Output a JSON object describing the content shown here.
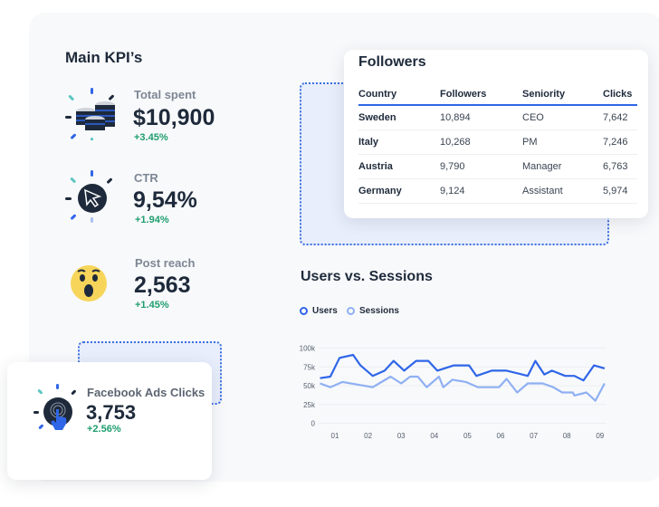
{
  "kpi_section": {
    "title": "Main KPI’s",
    "items": [
      {
        "label": "Total spent",
        "value": "$10,900",
        "change": "+3.45%",
        "icon": "coins-icon"
      },
      {
        "label": "CTR",
        "value": "9,54%",
        "change": "+1.94%",
        "icon": "cursor-click-icon"
      },
      {
        "label": "Post reach",
        "value": "2,563",
        "change": "+1.45%",
        "icon": "wow-emoji-icon"
      },
      {
        "label": "Facebook Ads Clicks",
        "value": "3,753",
        "change": "+2.56%",
        "icon": "touch-hand-icon"
      }
    ]
  },
  "followers": {
    "title": "Followers",
    "columns": [
      "Country",
      "Followers",
      "Seniority",
      "Clicks"
    ],
    "rows": [
      [
        "Sweden",
        "10,894",
        "CEO",
        "7,642"
      ],
      [
        "Italy",
        "10,268",
        "PM",
        "7,246"
      ],
      [
        "Austria",
        "9,790",
        "Manager",
        "6,763"
      ],
      [
        "Germany",
        "9,124",
        "Assistant",
        "5,974"
      ]
    ]
  },
  "colors": {
    "accent": "#2f66e8",
    "sessions": "#8fb0f2",
    "positive": "#1f9e6e"
  },
  "chart_data": {
    "type": "line",
    "title": "Users vs. Sessions",
    "xlabel": "",
    "ylabel": "",
    "legend_position": "top-left",
    "grid": true,
    "ylim": [
      0,
      100000
    ],
    "yticks": [
      "0",
      "25k",
      "50k",
      "75k",
      "100k"
    ],
    "xticks": [
      "01",
      "02",
      "03",
      "04",
      "05",
      "06",
      "07",
      "08",
      "09"
    ],
    "series": [
      {
        "name": "Users",
        "color": "#2f66e8",
        "x": [
          0.55,
          0.86,
          1.14,
          1.55,
          1.77,
          2.14,
          2.5,
          2.77,
          3.09,
          3.45,
          3.82,
          4.09,
          4.59,
          5.05,
          5.27,
          5.73,
          6.18,
          6.55,
          6.82,
          7.05,
          7.32,
          7.55,
          7.95,
          8.23,
          8.5,
          8.82,
          9.14
        ],
        "y": [
          60000,
          62000,
          87000,
          91000,
          77000,
          63000,
          70000,
          83000,
          70000,
          83000,
          83000,
          70000,
          77000,
          77000,
          63000,
          70000,
          70000,
          66000,
          63000,
          83000,
          65000,
          70000,
          63000,
          63000,
          57000,
          77000,
          73000
        ]
      },
      {
        "name": "Sessions",
        "color": "#8fb0f2",
        "x": [
          0.55,
          0.86,
          1.23,
          2.14,
          2.68,
          3.0,
          3.27,
          3.5,
          3.77,
          4.14,
          4.27,
          4.55,
          4.95,
          5.32,
          5.95,
          6.18,
          6.5,
          6.82,
          7.27,
          7.59,
          7.86,
          8.18,
          8.23,
          8.59,
          8.86,
          9.14
        ],
        "y": [
          53000,
          48000,
          55000,
          48000,
          62000,
          53000,
          62000,
          62000,
          48000,
          62000,
          48000,
          58000,
          55000,
          48000,
          48000,
          59000,
          41000,
          53000,
          53000,
          48000,
          41000,
          41000,
          37000,
          41000,
          30000,
          53000
        ]
      }
    ]
  }
}
